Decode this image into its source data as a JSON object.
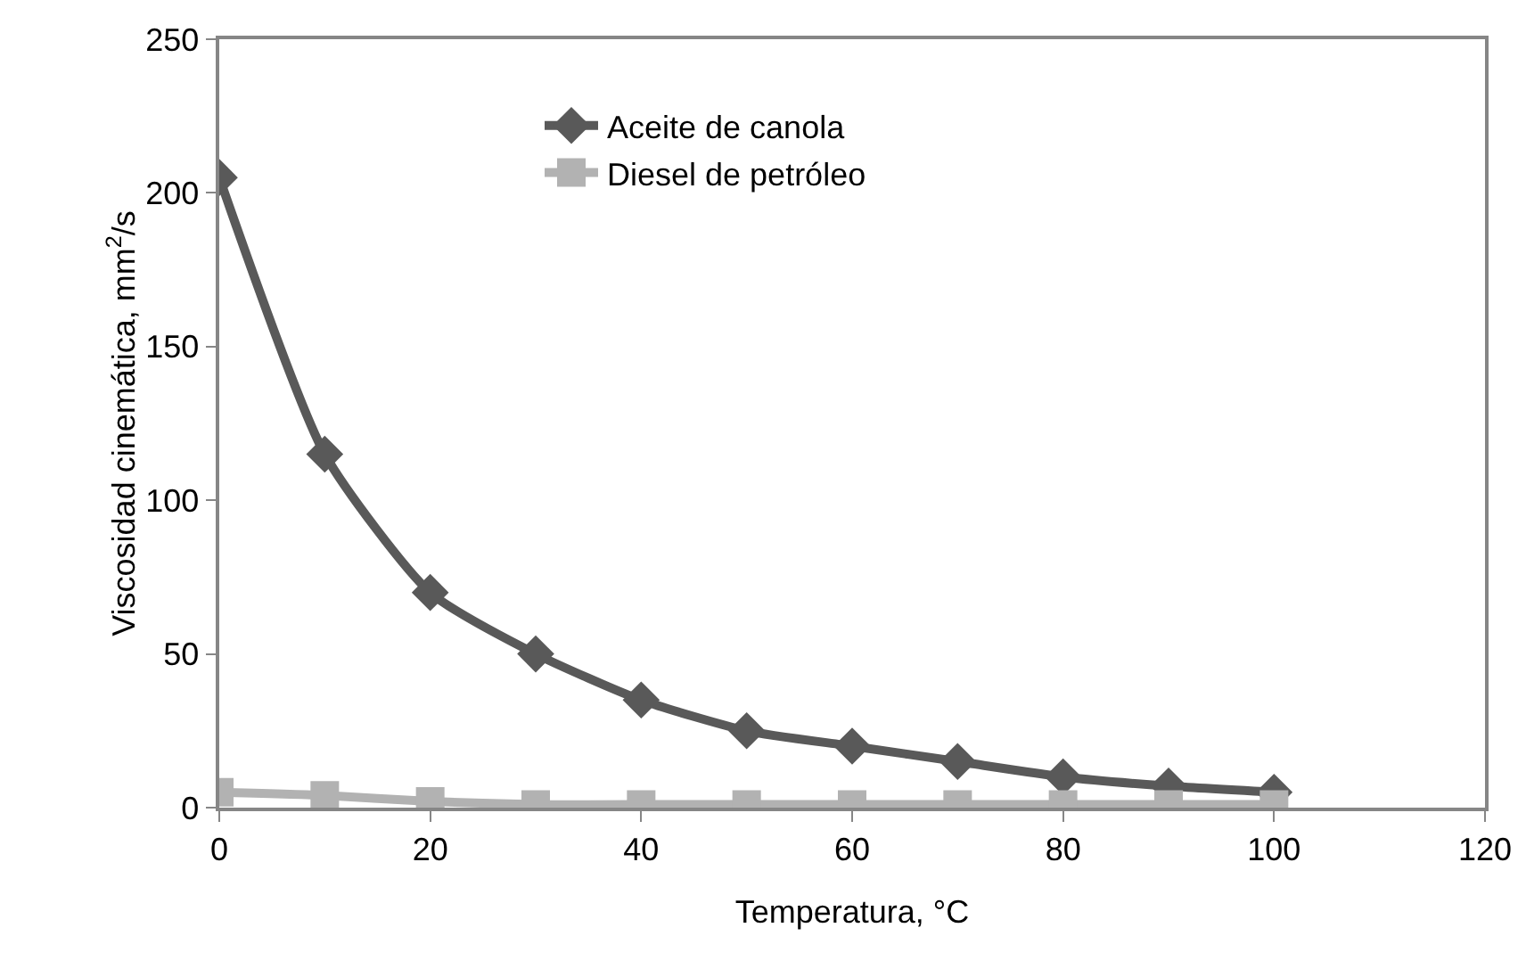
{
  "chart_data": {
    "type": "line",
    "xlabel": "Temperatura, °C",
    "ylabel": "Viscosidad cinemática, mm$^{2}$/s",
    "x": [
      0,
      10,
      20,
      30,
      40,
      50,
      60,
      70,
      80,
      90,
      100
    ],
    "series": [
      {
        "name": "Aceite de canola",
        "color": "#595959",
        "marker": "diamond",
        "values": [
          205,
          115,
          70,
          50,
          35,
          25,
          20,
          15,
          10,
          7,
          5
        ]
      },
      {
        "name": "Diesel de petróleo",
        "color": "#b2b2b2",
        "marker": "square",
        "values": [
          5,
          4,
          2,
          1,
          1,
          1,
          1,
          1,
          1,
          1,
          1
        ]
      }
    ],
    "xlim": [
      0,
      120
    ],
    "xticks": [
      0,
      20,
      40,
      60,
      80,
      100,
      120
    ],
    "ylim": [
      0,
      250
    ],
    "yticks": [
      0,
      50,
      100,
      150,
      200,
      250
    ],
    "grid": false,
    "legend": "top",
    "line_style": "solid"
  }
}
